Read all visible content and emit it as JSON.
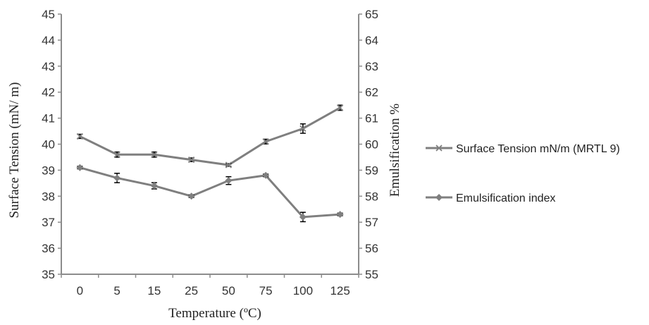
{
  "chart_data": {
    "type": "line",
    "categories": [
      "0",
      "5",
      "15",
      "25",
      "50",
      "75",
      "100",
      "125"
    ],
    "series": [
      {
        "name": "Surface Tension mN/m (MRTL 9)",
        "axis": "left",
        "marker": "x",
        "values": [
          40.3,
          39.6,
          39.6,
          39.4,
          39.2,
          40.1,
          40.6,
          41.4
        ],
        "errors": [
          0.08,
          0.1,
          0.1,
          0.07,
          0.05,
          0.09,
          0.18,
          0.1
        ]
      },
      {
        "name": "Emulsification index",
        "axis": "right",
        "marker": "diamond",
        "values": [
          59.1,
          58.7,
          58.4,
          58.0,
          58.6,
          58.8,
          57.2,
          57.3
        ],
        "errors": [
          0.05,
          0.18,
          0.12,
          0.05,
          0.15,
          0.05,
          0.18,
          0.05
        ]
      }
    ],
    "xlabel": "Temperature (ºC)",
    "ylabel": "Surface Tension (mN/ m)",
    "y2label": "Emulsification %",
    "ylim": [
      35,
      45
    ],
    "y2lim": [
      55,
      65
    ],
    "y_ticks": [
      "35",
      "36",
      "37",
      "38",
      "39",
      "40",
      "41",
      "42",
      "43",
      "44",
      "45"
    ],
    "y2_ticks": [
      "55",
      "56",
      "57",
      "58",
      "59",
      "60",
      "61",
      "62",
      "63",
      "64",
      "65"
    ],
    "grid": false,
    "legend_position": "right",
    "colors": {
      "line": "#7f7f7f",
      "axis": "#8c8c8c",
      "error_bar": "#000000"
    }
  }
}
